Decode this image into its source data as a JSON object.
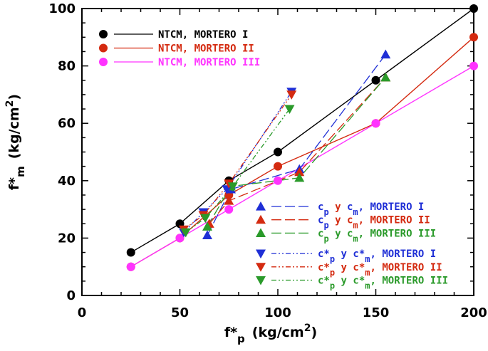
{
  "chart_data": {
    "type": "line",
    "title": "",
    "xlabel": {
      "base": "f*",
      "sub": "p",
      "unit": "(kg/cm",
      "sup": "2",
      "close": ")"
    },
    "ylabel": {
      "base": "f*",
      "sub": "m",
      "unit": "(kg/cm",
      "sup": "2",
      "close": ")"
    },
    "xlim": [
      0,
      200
    ],
    "ylim": [
      0,
      100
    ],
    "xticks": [
      0,
      50,
      100,
      150,
      200
    ],
    "yticks": [
      0,
      20,
      40,
      60,
      80,
      100
    ],
    "xtick_labels": [
      "0",
      "50",
      "100",
      "150",
      "200"
    ],
    "ytick_labels": [
      "0",
      "20",
      "40",
      "60",
      "80",
      "100"
    ],
    "grid": false,
    "series": [
      {
        "name": "NTCM, MORTERO I",
        "color": "#000000",
        "marker": "circle",
        "dash": "solid",
        "x": [
          25,
          50,
          75,
          100,
          150,
          200
        ],
        "y": [
          15,
          25,
          40,
          50,
          75,
          100
        ]
      },
      {
        "name": "NTCM, MORTERO II",
        "color": "#d42a10",
        "marker": "circle",
        "dash": "solid",
        "x": [
          25,
          50,
          75,
          100,
          150,
          200
        ],
        "y": [
          10,
          20,
          35,
          45,
          60,
          90
        ]
      },
      {
        "name": "NTCM, MORTERO III",
        "color": "#ff33ff",
        "marker": "circle",
        "dash": "solid",
        "x": [
          25,
          50,
          75,
          100,
          150,
          200
        ],
        "y": [
          10,
          20,
          30,
          40,
          60,
          80
        ]
      },
      {
        "name": "c_p y c_m, MORTERO I",
        "color": "#1f2fd6",
        "marker": "triangle-up",
        "dash": "longdash",
        "x": [
          64,
          76,
          111,
          155
        ],
        "y": [
          21,
          37,
          44,
          84
        ]
      },
      {
        "name": "c_p y c_m, MORTERO II",
        "color": "#d42a10",
        "marker": "triangle-up",
        "dash": "longdash",
        "x": [
          65,
          75,
          111,
          155
        ],
        "y": [
          25,
          33,
          43,
          76
        ]
      },
      {
        "name": "c_p y c_m, MORTERO III",
        "color": "#2a9a2a",
        "marker": "triangle-up",
        "dash": "longdash",
        "x": [
          64,
          76,
          111,
          155
        ],
        "y": [
          24,
          38,
          41,
          76
        ]
      },
      {
        "name": "c*_p y c*_m, MORTERO I",
        "color": "#1f2fd6",
        "marker": "triangle-down",
        "dash": "dashdotdot",
        "x": [
          52,
          62,
          74,
          107
        ],
        "y": [
          22,
          29,
          37,
          71
        ]
      },
      {
        "name": "c*_p y c*_m, MORTERO II",
        "color": "#d42a10",
        "marker": "triangle-down",
        "dash": "dashdotdot",
        "x": [
          52,
          62,
          75,
          107
        ],
        "y": [
          23,
          28,
          39,
          70
        ]
      },
      {
        "name": "c*_p y c*_m, MORTERO III",
        "color": "#2a9a2a",
        "marker": "triangle-down",
        "dash": "dashdotdot",
        "x": [
          53,
          63,
          77,
          106
        ],
        "y": [
          22,
          27,
          38,
          65
        ]
      }
    ],
    "legend_groups": [
      {
        "position": "top-left",
        "items": [
          {
            "marker": "circle",
            "color": "#000000",
            "dash": "solid",
            "parts": [
              {
                "t": "NTCM, MORTERO I",
                "c": "#000000",
                "pos": "n"
              }
            ]
          },
          {
            "marker": "circle",
            "color": "#d42a10",
            "dash": "solid",
            "parts": [
              {
                "t": "NTCM, MORTERO II",
                "c": "#d42a10",
                "pos": "n"
              }
            ]
          },
          {
            "marker": "circle",
            "color": "#ff33ff",
            "dash": "solid",
            "parts": [
              {
                "t": "NTCM, MORTERO III",
                "c": "#ff33ff",
                "pos": "n"
              }
            ]
          }
        ]
      },
      {
        "position": "bottom-right",
        "items": [
          {
            "marker": "triangle-up",
            "color": "#1f2fd6",
            "dash": "longdash",
            "parts": [
              {
                "t": "c",
                "c": "#1f2fd6",
                "pos": "n"
              },
              {
                "t": "p",
                "c": "#1f2fd6",
                "pos": "sub"
              },
              {
                "t": " y ",
                "c": "#d42a10",
                "pos": "n"
              },
              {
                "t": "c",
                "c": "#1f2fd6",
                "pos": "n"
              },
              {
                "t": "m",
                "c": "#1f2fd6",
                "pos": "sub"
              },
              {
                "t": ", MORTERO I",
                "c": "#1f2fd6",
                "pos": "n"
              }
            ]
          },
          {
            "marker": "triangle-up",
            "color": "#d42a10",
            "dash": "longdash",
            "parts": [
              {
                "t": "c",
                "c": "#1f2fd6",
                "pos": "n"
              },
              {
                "t": "p",
                "c": "#1f2fd6",
                "pos": "sub"
              },
              {
                "t": " y ",
                "c": "#d42a10",
                "pos": "n"
              },
              {
                "t": "c",
                "c": "#d42a10",
                "pos": "n"
              },
              {
                "t": "m",
                "c": "#d42a10",
                "pos": "sub"
              },
              {
                "t": ", MORTERO II",
                "c": "#d42a10",
                "pos": "n"
              }
            ]
          },
          {
            "marker": "triangle-up",
            "color": "#2a9a2a",
            "dash": "longdash",
            "parts": [
              {
                "t": "c",
                "c": "#2a9a2a",
                "pos": "n"
              },
              {
                "t": "p",
                "c": "#2a9a2a",
                "pos": "sub"
              },
              {
                "t": " y ",
                "c": "#2a9a2a",
                "pos": "n"
              },
              {
                "t": "c",
                "c": "#2a9a2a",
                "pos": "n"
              },
              {
                "t": "m",
                "c": "#2a9a2a",
                "pos": "sub"
              },
              {
                "t": ", MORTERO III",
                "c": "#2a9a2a",
                "pos": "n"
              }
            ]
          },
          {
            "marker": "triangle-down",
            "color": "#1f2fd6",
            "dash": "dashdotdot",
            "parts": [
              {
                "t": "c*",
                "c": "#1f2fd6",
                "pos": "n"
              },
              {
                "t": "p",
                "c": "#1f2fd6",
                "pos": "sub"
              },
              {
                "t": " y ",
                "c": "#1f2fd6",
                "pos": "n"
              },
              {
                "t": "c*",
                "c": "#1f2fd6",
                "pos": "n"
              },
              {
                "t": "m",
                "c": "#1f2fd6",
                "pos": "sub"
              },
              {
                "t": ", MORTERO I",
                "c": "#1f2fd6",
                "pos": "n"
              }
            ]
          },
          {
            "marker": "triangle-down",
            "color": "#d42a10",
            "dash": "dashdotdot",
            "parts": [
              {
                "t": "c*",
                "c": "#d42a10",
                "pos": "n"
              },
              {
                "t": "p",
                "c": "#d42a10",
                "pos": "sub"
              },
              {
                "t": " y ",
                "c": "#d42a10",
                "pos": "n"
              },
              {
                "t": "c*",
                "c": "#d42a10",
                "pos": "n"
              },
              {
                "t": "m",
                "c": "#d42a10",
                "pos": "sub"
              },
              {
                "t": ", MORTERO II",
                "c": "#d42a10",
                "pos": "n"
              }
            ]
          },
          {
            "marker": "triangle-down",
            "color": "#2a9a2a",
            "dash": "dashdotdot",
            "parts": [
              {
                "t": "c*",
                "c": "#2a9a2a",
                "pos": "n"
              },
              {
                "t": "p",
                "c": "#2a9a2a",
                "pos": "sub"
              },
              {
                "t": " y ",
                "c": "#2a9a2a",
                "pos": "n"
              },
              {
                "t": "c*",
                "c": "#2a9a2a",
                "pos": "n"
              },
              {
                "t": "m",
                "c": "#2a9a2a",
                "pos": "sub"
              },
              {
                "t": ", MORTERO III",
                "c": "#2a9a2a",
                "pos": "n"
              }
            ]
          }
        ]
      }
    ]
  }
}
